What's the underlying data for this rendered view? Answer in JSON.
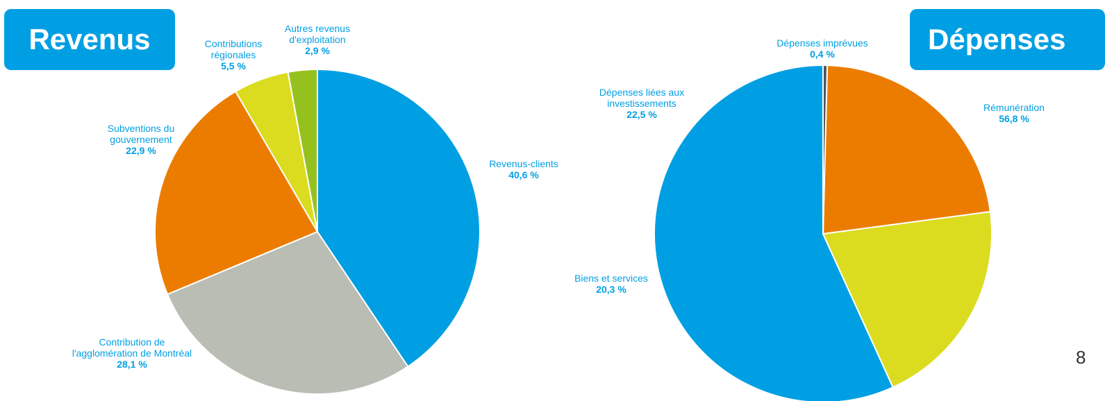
{
  "colors": {
    "badge": "#009fe3",
    "label": "#009fe3",
    "slice_border": "#ffffff",
    "blue": "#009fe3",
    "gray": "#b9bdb4",
    "orange": "#ec7c00",
    "yellow": "#dbdc1f",
    "green": "#95c11f",
    "dark_gray": "#555555"
  },
  "page_number": "8",
  "chart_data": [
    {
      "type": "pie",
      "title": "Revenus",
      "slices": [
        {
          "label_lines": [
            "Revenus-clients"
          ],
          "value_label": "40,6 %",
          "value": 40.6,
          "color": "#009fe3"
        },
        {
          "label_lines": [
            "Contribution de",
            "l'agglomération  de Montréal"
          ],
          "value_label": "28,1 %",
          "value": 28.1,
          "color": "#b9bdb4"
        },
        {
          "label_lines": [
            "Subventions du",
            "gouvernement"
          ],
          "value_label": "22,9 %",
          "value": 22.9,
          "color": "#ec7c00"
        },
        {
          "label_lines": [
            "Contributions",
            "régionales"
          ],
          "value_label": "5,5 %",
          "value": 5.5,
          "color": "#dbdc1f"
        },
        {
          "label_lines": [
            "Autres revenus",
            "d'exploitation"
          ],
          "value_label": "2,9 %",
          "value": 2.9,
          "color": "#95c11f"
        }
      ]
    },
    {
      "type": "pie",
      "title": "Dépenses",
      "slices": [
        {
          "label_lines": [
            "Rémunération"
          ],
          "value_label": "56,8 %",
          "value": 56.8,
          "color": "#009fe3"
        },
        {
          "label_lines": [
            "Biens et services"
          ],
          "value_label": "20,3 %",
          "value": 20.3,
          "color": "#dbdc1f"
        },
        {
          "label_lines": [
            "Dépenses liées aux",
            "investissements"
          ],
          "value_label": "22,5 %",
          "value": 22.5,
          "color": "#ec7c00"
        },
        {
          "label_lines": [
            "Dépenses imprévues"
          ],
          "value_label": "0,4 %",
          "value": 0.4,
          "color": "#555555"
        }
      ]
    }
  ]
}
